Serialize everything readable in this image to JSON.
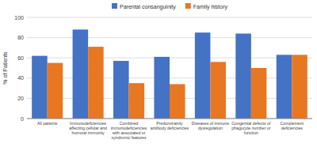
{
  "chart_data": {
    "type": "bar",
    "categories": [
      "All patients",
      "Immunodeficiencies\naffecting cellular and\nhumoral immunity",
      "Combined\nimmunodeficiencies\nwith associated or\nsyndromic features",
      "Predominantly\nantibody deficiencies",
      "Diseases of immune\ndysregulation",
      "Congenital defects of\nphagocyte number or\nfunction",
      "Complement\ndeficiencies"
    ],
    "series": [
      {
        "name": "Parental consanguinity",
        "color": "#4472C4",
        "values": [
          62,
          88,
          57,
          61,
          85,
          84,
          63
        ]
      },
      {
        "name": "Family history",
        "color": "#E87722",
        "values": [
          55,
          71,
          35,
          34,
          56,
          50,
          63
        ]
      }
    ],
    "ylabel": "% of Patients",
    "ylim": [
      0,
      100
    ],
    "yticks": [
      0,
      20,
      40,
      60,
      80,
      100
    ],
    "grid": true,
    "legend": "top"
  }
}
